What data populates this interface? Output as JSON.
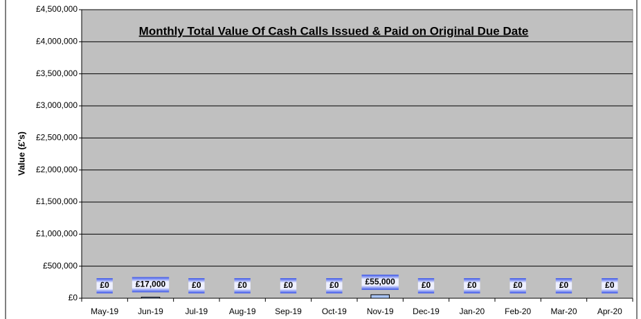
{
  "chart_data": {
    "type": "bar",
    "title": "Monthly Total Value Of Cash Calls Issued & Paid on Original  Due Date",
    "y_label": "Value (£'s)",
    "categories": [
      "May-19",
      "Jun-19",
      "Jul-19",
      "Aug-19",
      "Sep-19",
      "Oct-19",
      "Nov-19",
      "Dec-19",
      "Jan-20",
      "Feb-20",
      "Mar-20",
      "Apr-20"
    ],
    "values": [
      0,
      17000,
      0,
      0,
      0,
      0,
      55000,
      0,
      0,
      0,
      0,
      0
    ],
    "value_labels": [
      "£0",
      "£17,000",
      "£0",
      "£0",
      "£0",
      "£0",
      "£55,000",
      "£0",
      "£0",
      "£0",
      "£0",
      "£0"
    ],
    "color": "#a9c4f5",
    "ylim": [
      0,
      4500000
    ],
    "yticks": [
      {
        "value": 0,
        "label": "£0"
      },
      {
        "value": 500000,
        "label": "£500,000"
      },
      {
        "value": 1000000,
        "label": "£1,000,000"
      },
      {
        "value": 1500000,
        "label": "£1,500,000"
      },
      {
        "value": 2000000,
        "label": "£2,000,000"
      },
      {
        "value": 2500000,
        "label": "£2,500,000"
      },
      {
        "value": 3000000,
        "label": "£3,000,000"
      },
      {
        "value": 3500000,
        "label": "£3,500,000"
      },
      {
        "value": 4000000,
        "label": "£4,000,000"
      },
      {
        "value": 4500000,
        "label": "£4,500,000"
      }
    ],
    "grid": true
  }
}
